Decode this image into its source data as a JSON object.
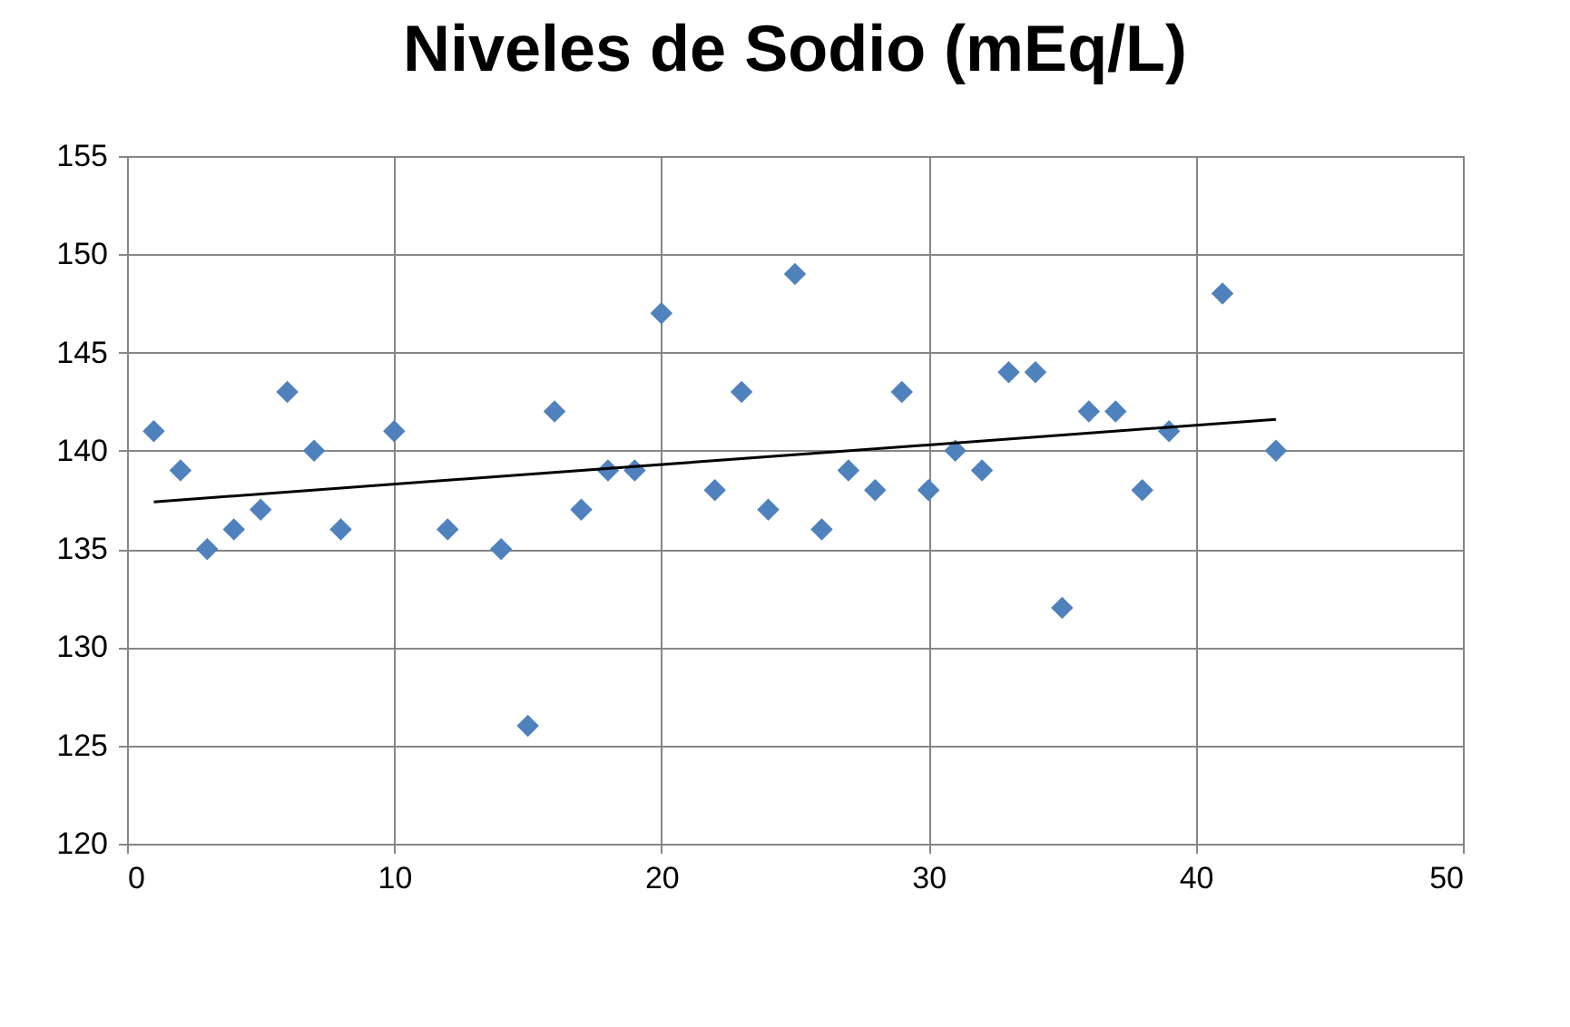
{
  "chart_data": {
    "type": "scatter",
    "title": "Niveles de Sodio (mEq/L)",
    "x": [
      1,
      2,
      3,
      4,
      5,
      6,
      7,
      8,
      10,
      12,
      14,
      15,
      16,
      17,
      18,
      19,
      20,
      22,
      23,
      24,
      25,
      26,
      27,
      28,
      29,
      30,
      31,
      32,
      33,
      34,
      35,
      36,
      37,
      38,
      39,
      41,
      43
    ],
    "series": [
      {
        "color": "#4f81bd",
        "marker": "diamond",
        "values": [
          141,
          139,
          135,
          136,
          137,
          143,
          140,
          136,
          141,
          136,
          135,
          126,
          142,
          137,
          139,
          139,
          147,
          138,
          143,
          137,
          149,
          136,
          139,
          138,
          143,
          138,
          140,
          139,
          144,
          144,
          132,
          142,
          142,
          138,
          141,
          148,
          140
        ]
      },
      {
        "type": "line",
        "color": "#000000",
        "marker": "none",
        "line_style": "solid",
        "x": [
          1,
          43
        ],
        "values": [
          137.4,
          141.6
        ]
      }
    ],
    "xlim": [
      0,
      50
    ],
    "xticks": [
      0,
      10,
      20,
      30,
      40,
      50
    ],
    "ylim": [
      120,
      155
    ],
    "yticks": [
      120,
      125,
      130,
      135,
      140,
      145,
      150,
      155
    ],
    "grid": true
  }
}
